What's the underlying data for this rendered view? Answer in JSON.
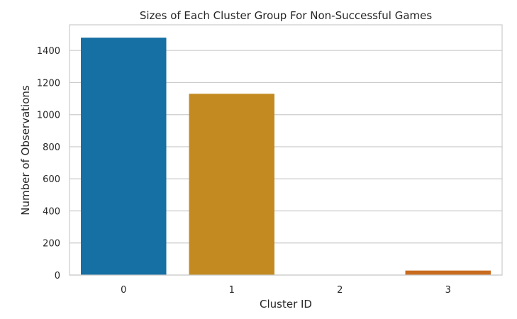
{
  "chart_data": {
    "type": "bar",
    "title": "Sizes of Each Cluster Group For Non-Successful Games",
    "xlabel": "Cluster ID",
    "ylabel": "Number of Observations",
    "categories": [
      "0",
      "1",
      "2",
      "3"
    ],
    "values": [
      1480,
      1130,
      2,
      28
    ],
    "colors": [
      "#1670a3",
      "#c28a21",
      "#1b9e77",
      "#c96b1f"
    ],
    "ylim": [
      0,
      1560
    ],
    "yticks": [
      0,
      200,
      400,
      600,
      800,
      1000,
      1200,
      1400
    ],
    "ytick_labels": [
      "0",
      "200",
      "400",
      "600",
      "800",
      "1000",
      "1200",
      "1400"
    ],
    "grid": true,
    "grid_color": "#cccccc",
    "frame_color": "#cccccc"
  }
}
